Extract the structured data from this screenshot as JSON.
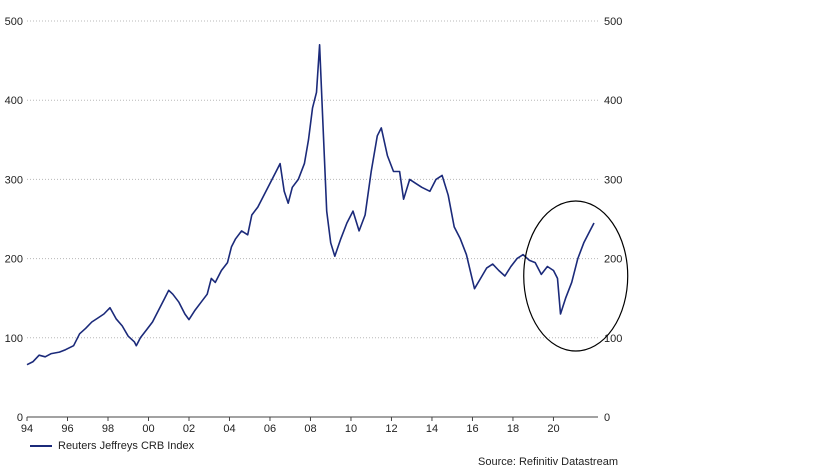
{
  "chart_data": {
    "type": "line",
    "title": "",
    "xlabel": "",
    "ylabel": "",
    "ylim": [
      0,
      500
    ],
    "xlim": [
      1994,
      2022.2
    ],
    "yticks": [
      0,
      100,
      200,
      300,
      400,
      500
    ],
    "xticks": [
      {
        "label": "94",
        "x": 1994
      },
      {
        "label": "96",
        "x": 1996
      },
      {
        "label": "98",
        "x": 1998
      },
      {
        "label": "00",
        "x": 2000
      },
      {
        "label": "02",
        "x": 2002
      },
      {
        "label": "04",
        "x": 2004
      },
      {
        "label": "06",
        "x": 2006
      },
      {
        "label": "08",
        "x": 2008
      },
      {
        "label": "10",
        "x": 2010
      },
      {
        "label": "12",
        "x": 2012
      },
      {
        "label": "14",
        "x": 2014
      },
      {
        "label": "16",
        "x": 2016
      },
      {
        "label": "18",
        "x": 2018
      },
      {
        "label": "20",
        "x": 2020
      }
    ],
    "grid": "horizontal",
    "dual_y_axis": true,
    "legend": "bottom-left",
    "series": [
      {
        "name": "Reuters Jeffreys CRB Index",
        "color": "#1b2a7a",
        "points": [
          [
            1994.0,
            66
          ],
          [
            1994.3,
            70
          ],
          [
            1994.6,
            78
          ],
          [
            1994.9,
            76
          ],
          [
            1995.2,
            80
          ],
          [
            1995.6,
            82
          ],
          [
            1995.9,
            85
          ],
          [
            1996.3,
            90
          ],
          [
            1996.6,
            105
          ],
          [
            1996.9,
            112
          ],
          [
            1997.2,
            120
          ],
          [
            1997.5,
            125
          ],
          [
            1997.8,
            130
          ],
          [
            1998.1,
            138
          ],
          [
            1998.4,
            124
          ],
          [
            1998.7,
            115
          ],
          [
            1999.0,
            102
          ],
          [
            1999.3,
            95
          ],
          [
            1999.4,
            90
          ],
          [
            1999.6,
            100
          ],
          [
            1999.9,
            110
          ],
          [
            2000.2,
            120
          ],
          [
            2000.5,
            135
          ],
          [
            2000.8,
            150
          ],
          [
            2001.0,
            160
          ],
          [
            2001.2,
            155
          ],
          [
            2001.5,
            145
          ],
          [
            2001.8,
            130
          ],
          [
            2002.0,
            123
          ],
          [
            2002.3,
            135
          ],
          [
            2002.6,
            145
          ],
          [
            2002.9,
            155
          ],
          [
            2003.1,
            175
          ],
          [
            2003.3,
            170
          ],
          [
            2003.6,
            185
          ],
          [
            2003.9,
            195
          ],
          [
            2004.1,
            215
          ],
          [
            2004.3,
            225
          ],
          [
            2004.6,
            235
          ],
          [
            2004.9,
            230
          ],
          [
            2005.1,
            255
          ],
          [
            2005.4,
            265
          ],
          [
            2005.7,
            280
          ],
          [
            2006.0,
            295
          ],
          [
            2006.3,
            310
          ],
          [
            2006.5,
            320
          ],
          [
            2006.7,
            285
          ],
          [
            2006.9,
            270
          ],
          [
            2007.1,
            290
          ],
          [
            2007.4,
            300
          ],
          [
            2007.7,
            320
          ],
          [
            2007.9,
            350
          ],
          [
            2008.1,
            390
          ],
          [
            2008.3,
            410
          ],
          [
            2008.45,
            470
          ],
          [
            2008.6,
            380
          ],
          [
            2008.8,
            260
          ],
          [
            2009.0,
            220
          ],
          [
            2009.2,
            203
          ],
          [
            2009.5,
            225
          ],
          [
            2009.8,
            245
          ],
          [
            2010.1,
            260
          ],
          [
            2010.4,
            235
          ],
          [
            2010.7,
            255
          ],
          [
            2011.0,
            310
          ],
          [
            2011.3,
            355
          ],
          [
            2011.5,
            365
          ],
          [
            2011.8,
            330
          ],
          [
            2012.1,
            310
          ],
          [
            2012.4,
            310
          ],
          [
            2012.6,
            275
          ],
          [
            2012.9,
            300
          ],
          [
            2013.2,
            295
          ],
          [
            2013.5,
            290
          ],
          [
            2013.9,
            285
          ],
          [
            2014.2,
            300
          ],
          [
            2014.5,
            305
          ],
          [
            2014.8,
            280
          ],
          [
            2015.1,
            240
          ],
          [
            2015.4,
            225
          ],
          [
            2015.7,
            205
          ],
          [
            2016.1,
            162
          ],
          [
            2016.4,
            175
          ],
          [
            2016.7,
            188
          ],
          [
            2017.0,
            193
          ],
          [
            2017.3,
            185
          ],
          [
            2017.6,
            178
          ],
          [
            2017.9,
            190
          ],
          [
            2018.2,
            200
          ],
          [
            2018.5,
            205
          ],
          [
            2018.8,
            198
          ],
          [
            2019.1,
            195
          ],
          [
            2019.4,
            180
          ],
          [
            2019.7,
            190
          ],
          [
            2020.0,
            185
          ],
          [
            2020.2,
            175
          ],
          [
            2020.35,
            130
          ],
          [
            2020.6,
            150
          ],
          [
            2020.9,
            170
          ],
          [
            2021.2,
            200
          ],
          [
            2021.5,
            220
          ],
          [
            2021.8,
            235
          ],
          [
            2022.0,
            245
          ]
        ]
      }
    ],
    "annotations": [
      {
        "type": "ellipse",
        "note": ""
      }
    ],
    "source": "Source: Refinitiv Datastream"
  }
}
